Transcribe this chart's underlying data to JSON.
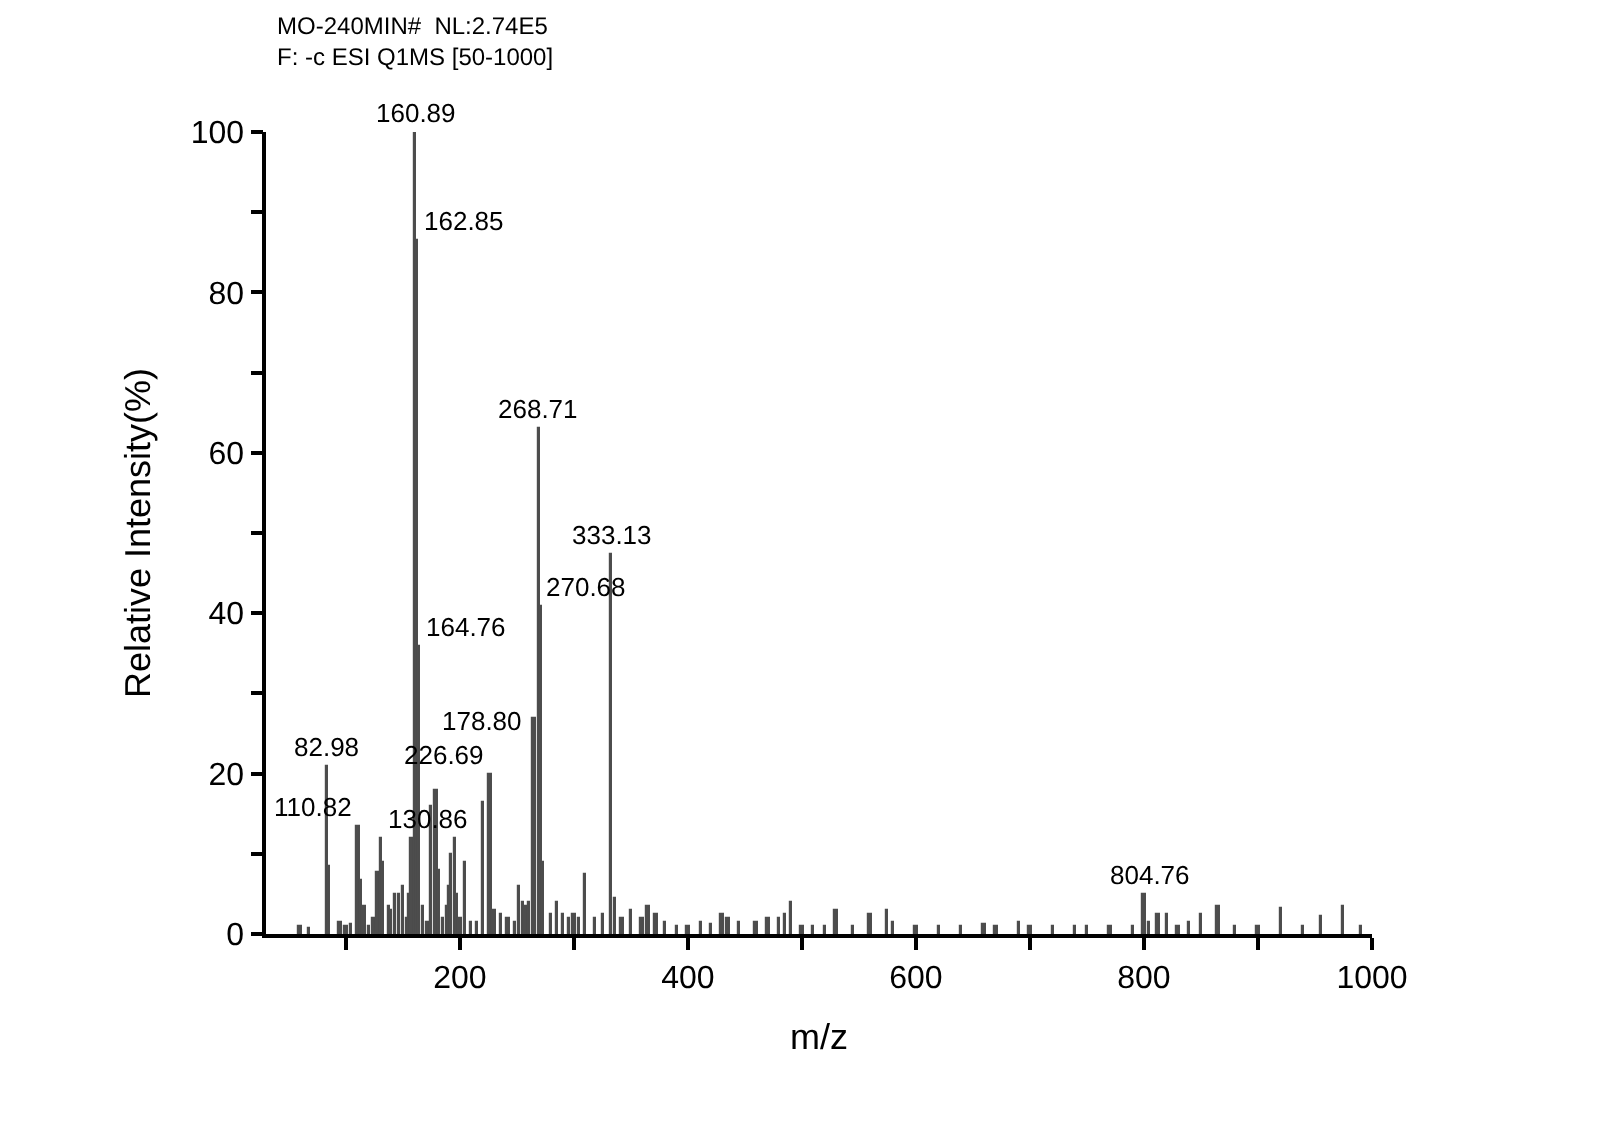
{
  "chart_data": {
    "type": "bar",
    "title": "MO-240MIN#  NL:2.74E5",
    "subtitle": "F: -c ESI Q1MS [50-1000]",
    "xlabel": "m/z",
    "ylabel": "Relative Intensity(%)",
    "x": [
      60,
      68,
      82.98,
      85,
      95,
      100,
      104,
      110.82,
      113.5,
      116,
      120,
      125,
      128,
      130.86,
      133,
      138,
      140,
      143,
      147,
      150,
      153,
      155,
      158,
      160.89,
      162.85,
      164.76,
      167,
      172,
      175,
      178.8,
      182,
      185,
      188,
      190,
      192,
      195,
      197,
      200,
      205,
      210,
      215,
      220,
      226.69,
      230,
      236,
      242,
      248,
      252,
      255,
      258,
      261,
      265,
      268.71,
      270.68,
      273,
      280,
      285,
      290,
      296,
      300,
      305,
      310,
      318,
      325,
      333.13,
      336,
      342,
      350,
      360,
      365,
      372,
      380,
      390,
      400,
      412,
      420,
      430,
      435,
      445,
      460,
      470,
      480,
      485,
      490,
      500,
      510,
      520,
      530,
      545,
      560,
      575,
      580,
      600,
      620,
      640,
      660,
      670,
      690,
      700,
      720,
      740,
      750,
      770,
      790,
      800,
      804.76,
      812,
      820,
      830,
      840,
      850,
      865,
      880,
      900,
      920,
      940,
      955,
      975,
      990
    ],
    "series": [
      {
        "color": "#4d4d4d",
        "values": [
          1,
          0.8,
          21,
          8.5,
          1.5,
          1,
          1.2,
          13.5,
          6.8,
          3.5,
          1,
          2,
          7.8,
          12,
          9,
          3.5,
          3,
          5,
          5,
          6,
          2,
          5,
          12,
          100,
          86.5,
          36,
          3.5,
          1.5,
          16,
          18,
          8,
          2,
          3.5,
          6,
          10,
          12,
          5,
          2,
          9,
          1.5,
          1.5,
          16.5,
          20,
          3,
          2.5,
          2,
          1.5,
          6,
          4,
          3.5,
          4,
          27,
          63,
          41,
          9,
          2.5,
          4,
          2.5,
          2,
          2.5,
          2,
          7.5,
          2,
          2.5,
          47.5,
          4.5,
          2,
          3,
          2,
          3.5,
          2.5,
          1.5,
          1,
          1,
          1.5,
          1.2,
          2.5,
          2,
          1.5,
          1.5,
          2,
          2,
          2.5,
          4,
          1,
          1,
          1,
          3,
          1,
          2.5,
          3,
          1.5,
          1,
          1,
          1,
          1.2,
          1,
          1.5,
          1,
          1,
          1,
          1,
          1,
          1,
          5,
          1.5,
          2.5,
          2.5,
          1,
          1.5,
          2.5,
          3.5,
          1,
          1,
          3.2,
          1,
          2.2,
          3.5,
          1
        ]
      }
    ],
    "xlim": [
      30,
      1000
    ],
    "xticks": [
      {
        "value": 100,
        "label": null
      },
      200,
      {
        "value": 300,
        "label": null
      },
      400,
      {
        "value": 500,
        "label": null
      },
      600,
      {
        "value": 700,
        "label": null
      },
      800,
      {
        "value": 900,
        "label": null
      },
      1000
    ],
    "ylim": [
      0,
      100
    ],
    "yticks": [
      0,
      {
        "value": 10,
        "label": null
      },
      20,
      {
        "value": 30,
        "label": null
      },
      40,
      {
        "value": 50,
        "label": null
      },
      60,
      {
        "value": 70,
        "label": null
      },
      80,
      {
        "value": 90,
        "label": null
      },
      100
    ],
    "annotations": [
      {
        "text": "82.98",
        "x": 82.98,
        "y": 21
      },
      {
        "text": "110.82",
        "x": 110.82,
        "y": 13.5
      },
      {
        "text": "130.86",
        "x": 130.86,
        "y": 12
      },
      {
        "text": "160.89",
        "x": 160.89,
        "y": 100
      },
      {
        "text": "162.85",
        "x": 162.85,
        "y": 86.5
      },
      {
        "text": "164.76",
        "x": 164.76,
        "y": 36
      },
      {
        "text": "178.80",
        "x": 178.8,
        "y": 18
      },
      {
        "text": "226.69",
        "x": 226.69,
        "y": 20
      },
      {
        "text": "268.71",
        "x": 268.71,
        "y": 63
      },
      {
        "text": "270.68",
        "x": 270.68,
        "y": 41
      },
      {
        "text": "333.13",
        "x": 333.13,
        "y": 47.5
      },
      {
        "text": "804.76",
        "x": 804.76,
        "y": 5
      }
    ]
  }
}
